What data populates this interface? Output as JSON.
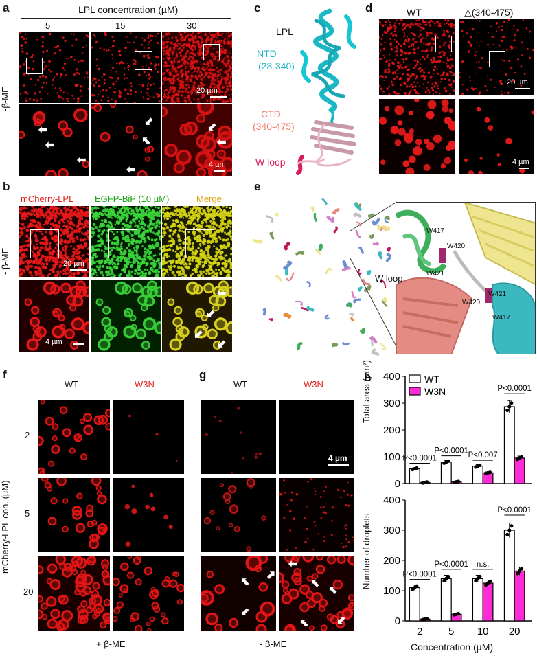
{
  "panels": {
    "a": {
      "label": "a",
      "header": "LPL concentration (µM)",
      "columns": [
        "5",
        "15",
        "30"
      ],
      "row_label": "-β-ME",
      "scalebar_top": "20 µm",
      "scalebar_bottom": "4 µm"
    },
    "b": {
      "label": "b",
      "columns": [
        "mCherry-LPL",
        "EGFP-BiP (10 µM)",
        "Merge"
      ],
      "column_colors": [
        "#e0201a",
        "#1aa31a",
        "#e0a000"
      ],
      "row_label": "- β-ME",
      "scalebar_top": "20 µm",
      "scalebar_bottom": "4 µm"
    },
    "c": {
      "label": "c",
      "title": "LPL",
      "ntd": "NTD",
      "ntd_range": "(28-340)",
      "ctd": "CTD",
      "ctd_range": "(340-475)",
      "wloop": "W loop",
      "colors": {
        "ntd": "#1ab8c4",
        "ctd": "#f07a6a",
        "wloop": "#d81b60"
      }
    },
    "d": {
      "label": "d",
      "columns": [
        "WT",
        "△(340-475)"
      ],
      "scalebar_top": "20 µm",
      "scalebar_bottom": "4 µm"
    },
    "e": {
      "label": "e",
      "wloop": "W loop",
      "residues": [
        "W417",
        "W420",
        "W421",
        "W420",
        "W421",
        "W417"
      ]
    },
    "f": {
      "label": "f",
      "columns": [
        "WT",
        "W3N"
      ],
      "rows": [
        "2",
        "5",
        "20"
      ],
      "y_axis": "mCherry-LPL con. (µM)",
      "footer": "+ β-ME"
    },
    "g": {
      "label": "g",
      "columns": [
        "WT",
        "W3N"
      ],
      "scalebar": "4 µm",
      "footer": "- β-ME"
    },
    "h": {
      "label": "h"
    }
  },
  "chart_data": [
    {
      "type": "bar",
      "title": "",
      "categories": [
        "2",
        "5",
        "10",
        "20"
      ],
      "series": [
        {
          "name": "WT",
          "values": [
            55,
            80,
            65,
            287
          ],
          "color": "#ffffff"
        },
        {
          "name": "W3N",
          "values": [
            4,
            6,
            40,
            95
          ],
          "color": "#ff2bd6"
        }
      ],
      "ylabel": "Total area (µm²)",
      "ylim": [
        0,
        400
      ],
      "yticks": [
        0,
        100,
        200,
        300,
        400
      ],
      "significance": [
        "P<0.0001",
        "P<0.0001",
        "P<0.007",
        "P<0.0001"
      ],
      "legend": "top-left"
    },
    {
      "type": "bar",
      "title": "",
      "categories": [
        "2",
        "5",
        "10",
        "20"
      ],
      "series": [
        {
          "name": "WT",
          "values": [
            110,
            140,
            140,
            300
          ],
          "color": "#ffffff"
        },
        {
          "name": "W3N",
          "values": [
            6,
            22,
            125,
            165
          ],
          "color": "#ff2bd6"
        }
      ],
      "xlabel": "Concentration (µM)",
      "ylabel": "Number of droplets",
      "ylim": [
        0,
        400
      ],
      "yticks": [
        0,
        100,
        200,
        300,
        400
      ],
      "significance": [
        "P<0.0001",
        "P<0.0001",
        "n.s.",
        "P<0.0001"
      ]
    }
  ]
}
